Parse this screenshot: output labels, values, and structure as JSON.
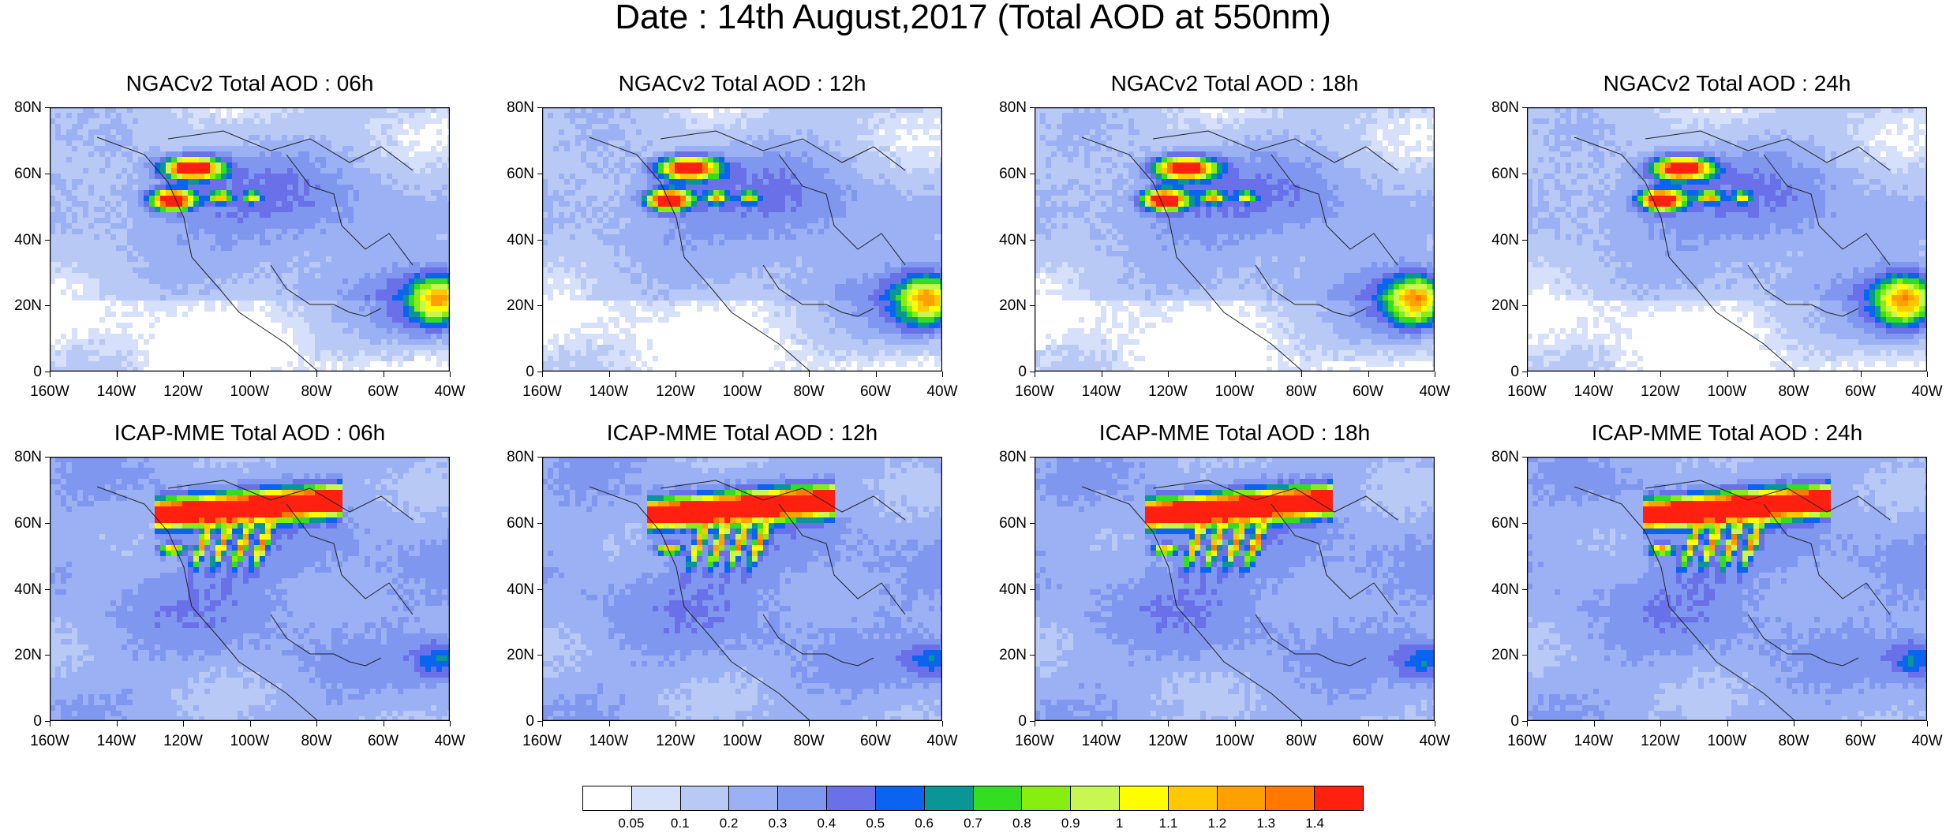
{
  "title": "Date : 14th August,2017 (Total AOD at 550nm)",
  "lat_labels": [
    "80N",
    "60N",
    "40N",
    "20N",
    "0"
  ],
  "lon_labels": [
    "160W",
    "140W",
    "120W",
    "100W",
    "80W",
    "60W",
    "40W"
  ],
  "panels": [
    {
      "title": "NGACv2 Total AOD : 06h",
      "model": "ngac",
      "hour": 6
    },
    {
      "title": "NGACv2 Total AOD : 12h",
      "model": "ngac",
      "hour": 12
    },
    {
      "title": "NGACv2 Total AOD : 18h",
      "model": "ngac",
      "hour": 18
    },
    {
      "title": "NGACv2 Total AOD : 24h",
      "model": "ngac",
      "hour": 24
    },
    {
      "title": "ICAP-MME Total AOD : 06h",
      "model": "icap",
      "hour": 6
    },
    {
      "title": "ICAP-MME Total AOD : 12h",
      "model": "icap",
      "hour": 12
    },
    {
      "title": "ICAP-MME Total AOD : 18h",
      "model": "icap",
      "hour": 18
    },
    {
      "title": "ICAP-MME Total AOD : 24h",
      "model": "icap",
      "hour": 24
    }
  ],
  "colorbar": {
    "labels": [
      "0.05",
      "0.1",
      "0.2",
      "0.3",
      "0.4",
      "0.5",
      "0.6",
      "0.7",
      "0.8",
      "0.9",
      "1",
      "1.1",
      "1.2",
      "1.3",
      "1.4"
    ],
    "colors": [
      "#ffffff",
      "#d6e0fa",
      "#b9c9f6",
      "#9bb1f4",
      "#8097f0",
      "#6a70e8",
      "#0a64f0",
      "#0a9696",
      "#33dd22",
      "#88ee11",
      "#c8f850",
      "#ffff00",
      "#ffc800",
      "#ffa000",
      "#ff7800",
      "#ff2010"
    ]
  }
}
